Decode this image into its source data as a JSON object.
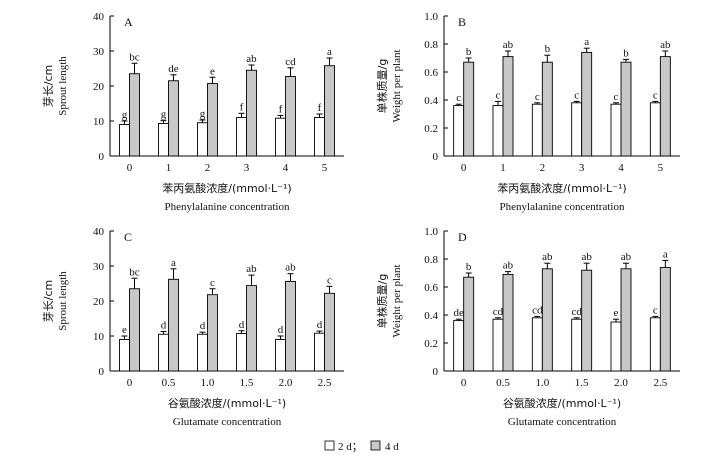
{
  "legend": {
    "items": [
      {
        "name": "2 d",
        "label": "2 d；",
        "color": "#ffffff"
      },
      {
        "name": "4 d",
        "label": "4 d",
        "color": "#c8c8c8"
      }
    ]
  },
  "chart_data": [
    {
      "type": "bar",
      "panel": "A",
      "categories": [
        "0",
        "1",
        "2",
        "3",
        "4",
        "5"
      ],
      "ylabel_cn": "芽长/cm",
      "ylabel_en": "Sprout length",
      "xlabel_cn": "苯丙氨酸浓度/(mmol·L⁻¹)",
      "xlabel_en": "Phenylalanine concentration",
      "ylim": [
        0,
        40
      ],
      "yticks": [
        "0",
        "10",
        "20",
        "30",
        "40"
      ],
      "series": [
        {
          "name": "2 d",
          "values": [
            9.0,
            9.3,
            9.5,
            11.0,
            10.8,
            11.0
          ],
          "errors": [
            1.0,
            0.8,
            0.8,
            1.2,
            0.8,
            1.0
          ],
          "labels": [
            "g",
            "g",
            "g",
            "f",
            "f",
            "f"
          ]
        },
        {
          "name": "4 d",
          "values": [
            23.5,
            21.5,
            20.7,
            24.5,
            22.7,
            25.8
          ],
          "errors": [
            3.0,
            1.7,
            1.8,
            1.5,
            2.5,
            2.2
          ],
          "labels": [
            "bc",
            "de",
            "e",
            "ab",
            "cd",
            "a"
          ]
        }
      ]
    },
    {
      "type": "bar",
      "panel": "B",
      "categories": [
        "0",
        "1",
        "2",
        "3",
        "4",
        "5"
      ],
      "ylabel_cn": "单株质量/g",
      "ylabel_en": "Weight per plant",
      "xlabel_cn": "苯丙氨酸浓度/(mmol·L⁻¹)",
      "xlabel_en": "Phenylalanine concentration",
      "ylim": [
        0,
        1.0
      ],
      "yticks": [
        "0",
        "0.2",
        "0.4",
        "0.6",
        "0.8",
        "1.0"
      ],
      "series": [
        {
          "name": "2 d",
          "values": [
            0.36,
            0.36,
            0.37,
            0.38,
            0.37,
            0.38
          ],
          "errors": [
            0.01,
            0.03,
            0.01,
            0.01,
            0.01,
            0.01
          ],
          "labels": [
            "c",
            "c",
            "c",
            "c",
            "c",
            "c"
          ]
        },
        {
          "name": "4 d",
          "values": [
            0.67,
            0.71,
            0.67,
            0.74,
            0.67,
            0.71
          ],
          "errors": [
            0.03,
            0.04,
            0.05,
            0.03,
            0.02,
            0.04
          ],
          "labels": [
            "b",
            "ab",
            "b",
            "a",
            "b",
            "ab"
          ]
        }
      ]
    },
    {
      "type": "bar",
      "panel": "C",
      "categories": [
        "0",
        "0.5",
        "1.0",
        "1.5",
        "2.0",
        "2.5"
      ],
      "ylabel_cn": "芽长/cm",
      "ylabel_en": "Sprout length",
      "xlabel_cn": "谷氨酸浓度/(mmol·L⁻¹)",
      "xlabel_en": "Glutamate concentration",
      "ylim": [
        0,
        40
      ],
      "yticks": [
        "0",
        "10",
        "20",
        "30",
        "40"
      ],
      "series": [
        {
          "name": "2 d",
          "values": [
            9.0,
            10.5,
            10.5,
            10.7,
            9.0,
            10.8
          ],
          "errors": [
            1.0,
            0.8,
            0.6,
            0.8,
            1.0,
            0.6
          ],
          "labels": [
            "e",
            "d",
            "d",
            "d",
            "d",
            "d"
          ]
        },
        {
          "name": "4 d",
          "values": [
            23.5,
            26.2,
            21.8,
            24.4,
            25.6,
            22.2
          ],
          "errors": [
            3.0,
            3.0,
            1.7,
            3.0,
            2.2,
            2.0
          ],
          "labels": [
            "bc",
            "a",
            "c",
            "ab",
            "ab",
            "c"
          ]
        }
      ]
    },
    {
      "type": "bar",
      "panel": "D",
      "categories": [
        "0",
        "0.5",
        "1.0",
        "1.5",
        "2.0",
        "2.5"
      ],
      "ylabel_cn": "单株质量/g",
      "ylabel_en": "Weight per plant",
      "xlabel_cn": "谷氨酸浓度/(mmol·L⁻¹)",
      "xlabel_en": "Glutamate concentration",
      "ylim": [
        0,
        1.0
      ],
      "yticks": [
        "0",
        "0.2",
        "0.4",
        "0.6",
        "0.8",
        "1.0"
      ],
      "series": [
        {
          "name": "2 d",
          "values": [
            0.36,
            0.37,
            0.38,
            0.37,
            0.35,
            0.38
          ],
          "errors": [
            0.01,
            0.01,
            0.01,
            0.01,
            0.02,
            0.01
          ],
          "labels": [
            "de",
            "cd",
            "cd",
            "cd",
            "e",
            "c"
          ]
        },
        {
          "name": "4 d",
          "values": [
            0.67,
            0.69,
            0.73,
            0.72,
            0.73,
            0.74
          ],
          "errors": [
            0.03,
            0.02,
            0.04,
            0.05,
            0.04,
            0.05
          ],
          "labels": [
            "b",
            "ab",
            "ab",
            "ab",
            "ab",
            "a"
          ]
        }
      ]
    }
  ]
}
